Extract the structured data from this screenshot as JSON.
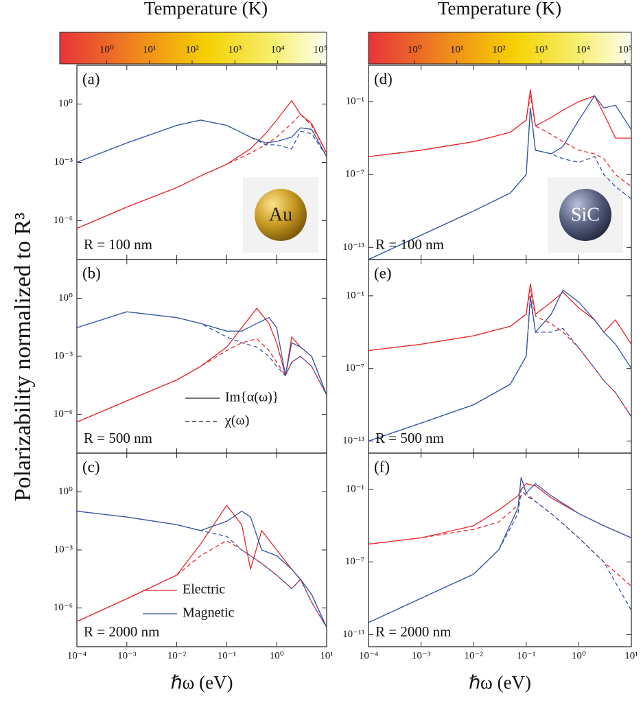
{
  "ylabel": "Polarizability normalized to R³",
  "colorbars": [
    {
      "title": "Temperature (K)",
      "clim": [
        0.08,
        140000
      ],
      "ticks": [
        {
          "value": 1,
          "label": "10⁰"
        },
        {
          "value": 10,
          "label": "10¹"
        },
        {
          "value": 100,
          "label": "10²"
        },
        {
          "value": 1000,
          "label": "10³"
        },
        {
          "value": 10000,
          "label": "10⁴"
        },
        {
          "value": 100000,
          "label": "10⁵"
        }
      ]
    },
    {
      "title": "Temperature (K)",
      "clim": [
        0.08,
        140000
      ],
      "ticks": [
        {
          "value": 1,
          "label": "10⁰"
        },
        {
          "value": 10,
          "label": "10¹"
        },
        {
          "value": 100,
          "label": "10²"
        },
        {
          "value": 1000,
          "label": "10³"
        },
        {
          "value": 10000,
          "label": "10⁴"
        },
        {
          "value": 100000,
          "label": "10⁵"
        }
      ]
    }
  ],
  "chart_data": [
    {
      "type": "line",
      "panel_label": "(a)",
      "annotation": "R = 100 nm",
      "particle": "Au",
      "log_x": true,
      "log_y": true,
      "x": [
        0.0001,
        0.001,
        0.01,
        0.03,
        0.1,
        0.3,
        0.6,
        1,
        2,
        3,
        5,
        10
      ],
      "xlim": [
        0.0001,
        10
      ],
      "xticks": [
        0.0001,
        0.001,
        0.01,
        0.1,
        1,
        10
      ],
      "show_xtick_labels": false,
      "ylim": [
        1e-08,
        100
      ],
      "yticks": [
        {
          "value": 1,
          "label": "10⁰"
        },
        {
          "value": 0.001,
          "label": "10⁻³"
        },
        {
          "value": 1e-06,
          "label": "10⁻⁶"
        }
      ],
      "series": [
        {
          "color": "#e8262b",
          "dash": "solid",
          "values": [
            4e-07,
            5e-06,
            5e-05,
            0.0002,
            0.0008,
            0.005,
            0.03,
            0.15,
            1.5,
            0.3,
            0.1,
            0.003
          ]
        },
        {
          "color": "#e8262b",
          "dash": "dashed",
          "values": [
            4e-07,
            5e-06,
            5e-05,
            0.0002,
            0.0008,
            0.003,
            0.008,
            0.02,
            0.1,
            0.3,
            0.08,
            0.003
          ]
        },
        {
          "color": "#3355a5",
          "dash": "solid",
          "values": [
            0.001,
            0.01,
            0.08,
            0.15,
            0.08,
            0.02,
            0.01,
            0.012,
            0.02,
            0.06,
            0.05,
            0.002
          ]
        },
        {
          "color": "#3355a5",
          "dash": "dashed",
          "values": [
            0.001,
            0.01,
            0.08,
            0.15,
            0.08,
            0.02,
            0.008,
            0.008,
            0.005,
            0.04,
            0.03,
            0.002
          ]
        }
      ]
    },
    {
      "type": "line",
      "panel_label": "(b)",
      "annotation": "R = 500 nm",
      "log_x": true,
      "log_y": true,
      "x": [
        0.0001,
        0.001,
        0.01,
        0.03,
        0.1,
        0.2,
        0.4,
        0.7,
        1,
        1.5,
        2,
        3,
        5,
        10
      ],
      "xlim": [
        0.0001,
        10
      ],
      "xticks": [
        0.0001,
        0.001,
        0.01,
        0.1,
        1,
        10
      ],
      "show_xtick_labels": false,
      "ylim": [
        1e-08,
        100
      ],
      "yticks": [
        {
          "value": 1,
          "label": "10⁰"
        },
        {
          "value": 0.001,
          "label": "10⁻³"
        },
        {
          "value": 1e-06,
          "label": "10⁻⁶"
        }
      ],
      "legend": [
        {
          "name": "Im{α(ω)}",
          "dash": "solid"
        },
        {
          "name": "χ(ω)",
          "dash": "dashed"
        }
      ],
      "series": [
        {
          "color": "#e8262b",
          "dash": "solid",
          "values": [
            4e-07,
            5e-06,
            6e-05,
            0.0003,
            0.003,
            0.03,
            0.3,
            0.05,
            0.005,
            0.0001,
            0.01,
            0.003,
            0.001,
            1e-05
          ]
        },
        {
          "color": "#e8262b",
          "dash": "dashed",
          "values": [
            4e-07,
            5e-06,
            6e-05,
            0.0003,
            0.002,
            0.005,
            0.008,
            0.002,
            0.0005,
            0.0001,
            0.0005,
            0.001,
            0.0003,
            1e-05
          ]
        },
        {
          "color": "#3355a5",
          "dash": "solid",
          "values": [
            0.03,
            0.2,
            0.1,
            0.05,
            0.02,
            0.02,
            0.05,
            0.1,
            0.03,
            0.0001,
            0.005,
            0.003,
            0.001,
            1e-05
          ]
        },
        {
          "color": "#3355a5",
          "dash": "dashed",
          "values": [
            0.03,
            0.2,
            0.1,
            0.05,
            0.01,
            0.005,
            0.003,
            0.001,
            0.0003,
            0.0001,
            0.0005,
            0.001,
            0.0003,
            1e-05
          ]
        }
      ]
    },
    {
      "type": "line",
      "panel_label": "(c)",
      "annotation": "R = 2000 nm",
      "xlabel": "ℏω (eV)",
      "log_x": true,
      "log_y": true,
      "x": [
        0.0001,
        0.001,
        0.01,
        0.03,
        0.1,
        0.2,
        0.3,
        0.5,
        1,
        2,
        3,
        5,
        10
      ],
      "xlim": [
        0.0001,
        10
      ],
      "xticks": [
        {
          "value": 0.0001,
          "label": "10⁻⁴"
        },
        {
          "value": 0.001,
          "label": "10⁻³"
        },
        {
          "value": 0.01,
          "label": "10⁻²"
        },
        {
          "value": 0.1,
          "label": "10⁻¹"
        },
        {
          "value": 1,
          "label": "10⁰"
        },
        {
          "value": 10,
          "label": "10¹"
        }
      ],
      "show_xtick_labels": true,
      "ylim": [
        1e-08,
        100
      ],
      "yticks": [
        {
          "value": 1,
          "label": "10⁰"
        },
        {
          "value": 0.001,
          "label": "10⁻³"
        },
        {
          "value": 1e-06,
          "label": "10⁻⁶"
        }
      ],
      "legend": [
        {
          "name": "Electric",
          "color": "#e8262b"
        },
        {
          "name": "Magnetic",
          "color": "#3355a5"
        }
      ],
      "series": [
        {
          "color": "#e8262b",
          "dash": "solid",
          "values": [
            2e-07,
            3e-06,
            5e-05,
            0.002,
            0.2,
            0.02,
            0.0001,
            0.01,
            0.001,
            0.0001,
            3e-05,
            5e-06,
            1e-07
          ]
        },
        {
          "color": "#e8262b",
          "dash": "dashed",
          "values": [
            2e-07,
            3e-06,
            5e-05,
            0.0005,
            0.003,
            0.001,
            0.0005,
            0.0002,
            5e-05,
            1e-05,
            3e-05,
            2e-06,
            1e-07
          ]
        },
        {
          "color": "#3355a5",
          "dash": "solid",
          "values": [
            0.1,
            0.05,
            0.02,
            0.01,
            0.03,
            0.1,
            0.05,
            0.001,
            0.0005,
            0.0001,
            3e-05,
            5e-06,
            1e-07
          ]
        },
        {
          "color": "#3355a5",
          "dash": "dashed",
          "values": [
            0.1,
            0.05,
            0.02,
            0.01,
            0.005,
            0.001,
            0.0005,
            0.0002,
            5e-05,
            1e-05,
            3e-05,
            2e-06,
            1e-07
          ]
        }
      ]
    },
    {
      "type": "line",
      "panel_label": "(d)",
      "annotation": "R = 100 nm",
      "particle": "SiC",
      "log_x": true,
      "log_y": true,
      "x": [
        0.0001,
        0.001,
        0.01,
        0.05,
        0.1,
        0.12,
        0.15,
        0.3,
        0.5,
        1,
        2,
        3,
        5,
        10
      ],
      "xlim": [
        0.0001,
        10
      ],
      "xticks": [
        0.0001,
        0.001,
        0.01,
        0.1,
        1,
        10
      ],
      "show_xtick_labels": false,
      "ylim": [
        1e-14,
        100
      ],
      "yticks": [
        {
          "value": 0.1,
          "label": "10⁻¹"
        },
        {
          "value": 1e-07,
          "label": "10⁻⁷"
        },
        {
          "value": 1e-13,
          "label": "10⁻¹³"
        }
      ],
      "series": [
        {
          "color": "#e8262b",
          "dash": "solid",
          "values": [
            3e-06,
            1e-05,
            5e-05,
            0.0003,
            0.003,
            1,
            0.001,
            0.005,
            0.02,
            0.1,
            0.3,
            0.01,
            0.0001,
            0.0001
          ]
        },
        {
          "color": "#e8262b",
          "dash": "dashed",
          "values": [
            3e-06,
            1e-05,
            5e-05,
            0.0003,
            0.003,
            0.3,
            0.001,
            0.0002,
            5e-05,
            1e-05,
            5e-06,
            2e-06,
            1e-07,
            1e-08
          ]
        },
        {
          "color": "#3355a5",
          "dash": "solid",
          "values": [
            1e-14,
            1e-12,
            1e-10,
            3e-09,
            1e-07,
            0.03,
            1e-05,
            5e-06,
            2e-05,
            0.003,
            0.3,
            0.03,
            0.05,
            0.0005
          ]
        },
        {
          "color": "#3355a5",
          "dash": "dashed",
          "values": [
            1e-14,
            1e-12,
            1e-10,
            3e-09,
            1e-07,
            0.03,
            1e-05,
            5e-06,
            2e-06,
            1e-06,
            3e-06,
            1e-07,
            1e-08,
            1e-09
          ]
        }
      ]
    },
    {
      "type": "line",
      "panel_label": "(e)",
      "annotation": "R = 500 nm",
      "log_x": true,
      "log_y": true,
      "x": [
        0.0001,
        0.001,
        0.01,
        0.05,
        0.1,
        0.12,
        0.15,
        0.3,
        0.5,
        1,
        2,
        3,
        5,
        10
      ],
      "xlim": [
        0.0001,
        10
      ],
      "xticks": [
        0.0001,
        0.001,
        0.01,
        0.1,
        1,
        10
      ],
      "show_xtick_labels": false,
      "ylim": [
        1e-14,
        100
      ],
      "yticks": [
        {
          "value": 0.1,
          "label": "10⁻¹"
        },
        {
          "value": 1e-07,
          "label": "10⁻⁷"
        },
        {
          "value": 1e-13,
          "label": "10⁻¹³"
        }
      ],
      "series": [
        {
          "color": "#e8262b",
          "dash": "solid",
          "values": [
            3e-06,
            1e-05,
            5e-05,
            0.0003,
            0.003,
            1,
            0.003,
            0.03,
            0.2,
            0.01,
            0.001,
            0.0001,
            0.001,
            1e-05
          ]
        },
        {
          "color": "#e8262b",
          "dash": "dashed",
          "values": [
            3e-06,
            1e-05,
            5e-05,
            0.0003,
            0.003,
            0.3,
            0.002,
            0.0005,
            0.0001,
            5e-06,
            1e-07,
            1e-08,
            1e-09,
            1e-11
          ]
        },
        {
          "color": "#3355a5",
          "dash": "solid",
          "values": [
            1e-13,
            3e-12,
            1e-10,
            5e-09,
            1e-06,
            0.1,
            0.0001,
            0.003,
            0.3,
            0.03,
            0.001,
            0.0001,
            1e-05,
            1e-07
          ]
        },
        {
          "color": "#3355a5",
          "dash": "dashed",
          "values": [
            1e-13,
            3e-12,
            1e-10,
            5e-09,
            1e-06,
            0.05,
            0.0001,
            0.0001,
            0.0002,
            5e-06,
            1e-07,
            1e-08,
            1e-09,
            1e-11
          ]
        }
      ]
    },
    {
      "type": "line",
      "panel_label": "(f)",
      "annotation": "R = 2000 nm",
      "xlabel": "ℏω (eV)",
      "log_x": true,
      "log_y": true,
      "x": [
        0.0001,
        0.001,
        0.01,
        0.03,
        0.07,
        0.08,
        0.1,
        0.15,
        0.3,
        1,
        3,
        10
      ],
      "xlim": [
        0.0001,
        10
      ],
      "xticks": [
        {
          "value": 0.0001,
          "label": "10⁻⁴"
        },
        {
          "value": 0.001,
          "label": "10⁻³"
        },
        {
          "value": 0.01,
          "label": "10⁻²"
        },
        {
          "value": 0.1,
          "label": "10⁻¹"
        },
        {
          "value": 1,
          "label": "10⁰"
        },
        {
          "value": 10,
          "label": "10¹"
        }
      ],
      "show_xtick_labels": true,
      "ylim": [
        1e-14,
        100
      ],
      "yticks": [
        {
          "value": 0.1,
          "label": "10⁻¹"
        },
        {
          "value": 1e-07,
          "label": "10⁻⁷"
        },
        {
          "value": 1e-13,
          "label": "10⁻¹³"
        }
      ],
      "series": [
        {
          "color": "#e8262b",
          "dash": "solid",
          "values": [
            3e-06,
            1e-05,
            0.0001,
            0.002,
            0.03,
            0.1,
            0.3,
            0.2,
            0.02,
            0.001,
            0.0001,
            1e-05
          ]
        },
        {
          "color": "#e8262b",
          "dash": "dashed",
          "values": [
            3e-06,
            1e-05,
            5e-05,
            0.0002,
            0.005,
            0.03,
            0.05,
            0.01,
            0.001,
            1e-05,
            1e-07,
            1e-09
          ]
        },
        {
          "color": "#3355a5",
          "dash": "solid",
          "values": [
            1e-12,
            1e-10,
            1e-08,
            1e-06,
            0.003,
            1,
            0.05,
            0.3,
            0.03,
            0.001,
            0.0001,
            1e-05
          ]
        },
        {
          "color": "#3355a5",
          "dash": "dashed",
          "values": [
            1e-12,
            1e-10,
            1e-08,
            1e-06,
            0.001,
            0.1,
            0.03,
            0.01,
            0.001,
            1e-05,
            1e-07,
            1e-11
          ]
        }
      ]
    }
  ]
}
